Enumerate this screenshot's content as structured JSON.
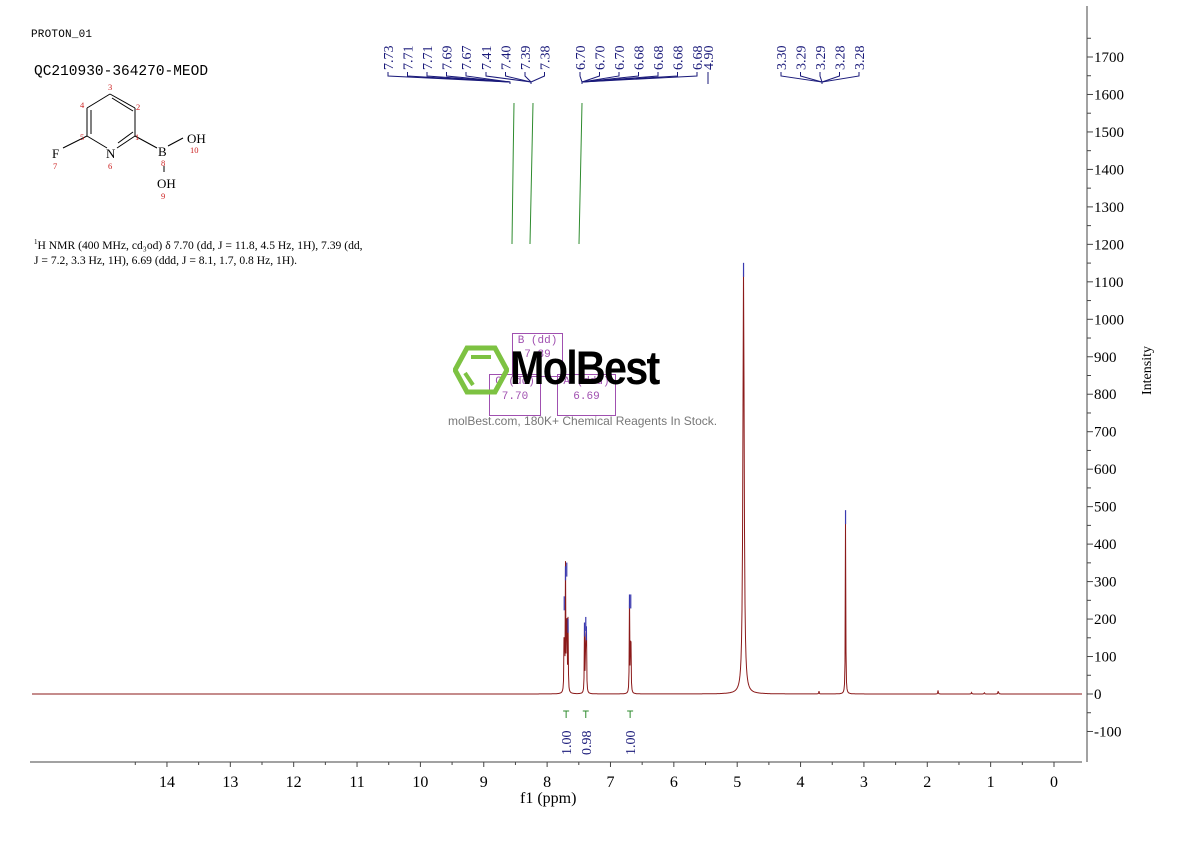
{
  "header": {
    "experiment_name": "PROTON_01",
    "sample_id": "QC210930-364270-MEOD"
  },
  "structure": {
    "atoms": [
      {
        "symbol": "F",
        "number": "7"
      },
      {
        "symbol": "N",
        "number": "6"
      },
      {
        "symbol": "B",
        "number": "8"
      },
      {
        "symbol": "OH",
        "number": "10"
      },
      {
        "symbol": "OH",
        "number": "9"
      }
    ],
    "ring_numbers": [
      "1",
      "2",
      "3",
      "4",
      "5"
    ]
  },
  "nmr_summary": {
    "superscript": "1",
    "text": "H NMR (400 MHz, cd₃od) δ 7.70 (dd, J = 11.8, 4.5 Hz, 1H), 7.39 (dd, J = 7.2, 3.3 Hz, 1H), 6.69 (ddd, J = 8.1, 1.7, 0.8 Hz, 1H)."
  },
  "watermark": {
    "brand": "MolBest",
    "tagline": "molBest.com, 180K+ Chemical Reagents In Stock.",
    "accent_color": "#7dc242"
  },
  "multiplet_boxes": [
    {
      "label": "B (dd)",
      "shift": "7.39"
    },
    {
      "label": "C (dd)",
      "shift": "7.70"
    },
    {
      "label": "A (ddd)",
      "shift": "6.69"
    }
  ],
  "chart_data": {
    "type": "line",
    "title": "",
    "xlabel": "f1 (ppm)",
    "ylabel": "Intensity",
    "xlim": [
      14.5,
      -0.35
    ],
    "ylim": [
      -160,
      1780
    ],
    "x_reversed": true,
    "x_ticks": [
      "14",
      "13",
      "12",
      "11",
      "10",
      "9",
      "8",
      "7",
      "6",
      "5",
      "4",
      "3",
      "2",
      "1",
      "0"
    ],
    "y_ticks": [
      "1700",
      "1600",
      "1500",
      "1400",
      "1300",
      "1200",
      "1100",
      "1000",
      "900",
      "800",
      "700",
      "600",
      "500",
      "400",
      "300",
      "200",
      "100",
      "0",
      "-100"
    ],
    "grid": false,
    "line_color": "#8b1a1a",
    "peak_label_color": "#1a1a7a",
    "integral_color": "#2e8b2e",
    "peaks": [
      {
        "ppm": 7.73,
        "intensity": 250
      },
      {
        "ppm": 7.71,
        "intensity": 330
      },
      {
        "ppm": 7.69,
        "intensity": 340
      },
      {
        "ppm": 7.67,
        "intensity": 190
      },
      {
        "ppm": 7.41,
        "intensity": 180
      },
      {
        "ppm": 7.39,
        "intensity": 195
      },
      {
        "ppm": 7.38,
        "intensity": 170
      },
      {
        "ppm": 6.7,
        "intensity": 255
      },
      {
        "ppm": 6.68,
        "intensity": 255
      },
      {
        "ppm": 4.9,
        "intensity": 1140
      },
      {
        "ppm": 3.29,
        "intensity": 480
      },
      {
        "ppm": 3.71,
        "intensity": 8
      },
      {
        "ppm": 1.83,
        "intensity": 10
      },
      {
        "ppm": 1.3,
        "intensity": 5
      },
      {
        "ppm": 1.1,
        "intensity": 5
      },
      {
        "ppm": 0.88,
        "intensity": 12
      }
    ],
    "peak_labels_group1": [
      "7.73",
      "7.71",
      "7.71",
      "7.69",
      "7.67",
      "7.41",
      "7.40",
      "7.39",
      "7.38"
    ],
    "peak_labels_group2": [
      "6.70",
      "6.70",
      "6.70",
      "6.68",
      "6.68",
      "6.68",
      "6.68",
      "4.90"
    ],
    "peak_labels_group3": [
      "3.30",
      "3.29",
      "3.29",
      "3.28",
      "3.28"
    ],
    "integrals": [
      {
        "ppm": 7.7,
        "value": "1.00"
      },
      {
        "ppm": 7.39,
        "value": "0.98"
      },
      {
        "ppm": 6.69,
        "value": "1.00"
      }
    ]
  }
}
